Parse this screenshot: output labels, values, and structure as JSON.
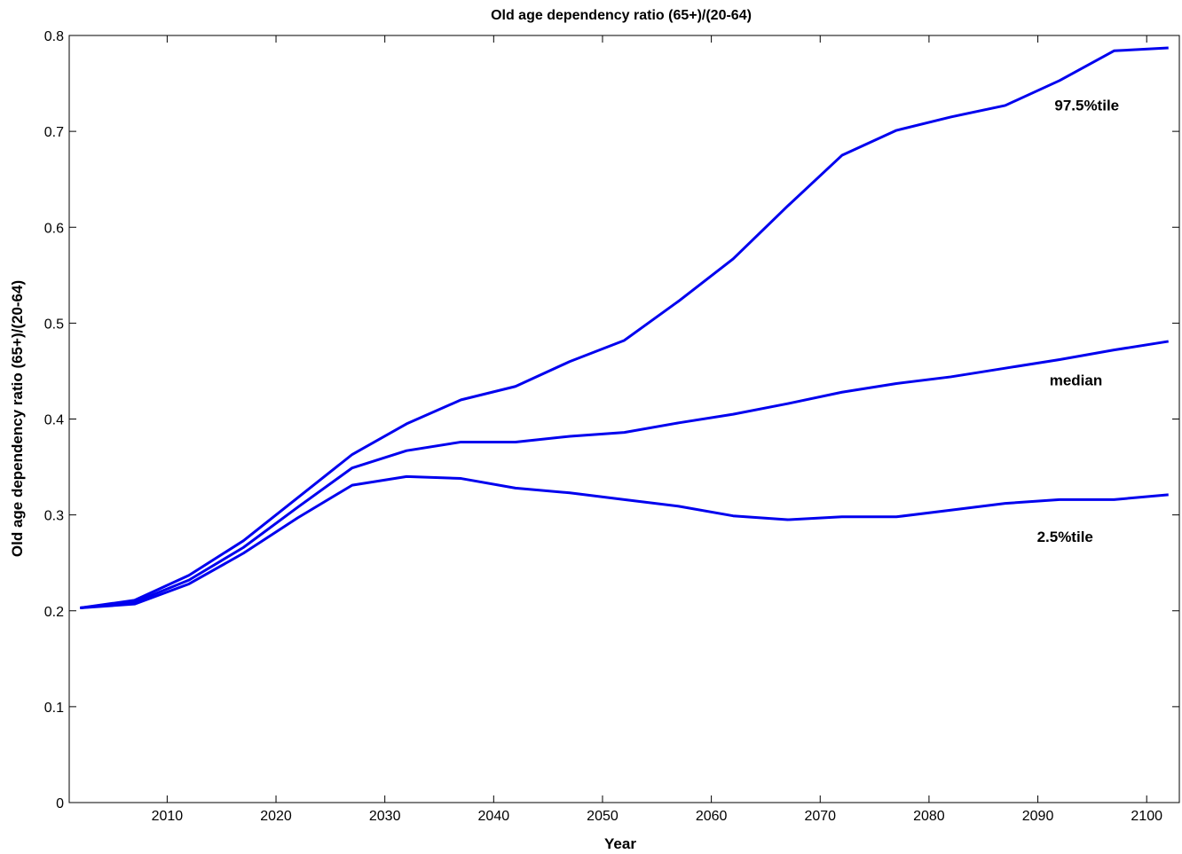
{
  "chart_data": {
    "type": "line",
    "title": "Old age dependency ratio (65+)/(20-64)",
    "xlabel": "Year",
    "ylabel": "Old age dependency ratio (65+)/(20-64)",
    "xlim": [
      2001,
      2103
    ],
    "ylim": [
      0,
      0.8
    ],
    "x_ticks": [
      2010,
      2020,
      2030,
      2040,
      2050,
      2060,
      2070,
      2080,
      2090,
      2100
    ],
    "y_ticks": [
      0,
      0.1,
      0.2,
      0.3,
      0.4,
      0.5,
      0.6,
      0.7,
      0.8
    ],
    "x_tick_labels": [
      "2010",
      "2020",
      "2030",
      "2040",
      "2050",
      "2060",
      "2070",
      "2080",
      "2090",
      "2100"
    ],
    "y_tick_labels": [
      "0",
      "0.1",
      "0.2",
      "0.3",
      "0.4",
      "0.5",
      "0.6",
      "0.7",
      "0.8"
    ],
    "grid": false,
    "line_color": "#0000ee",
    "x": [
      2002,
      2007,
      2012,
      2017,
      2022,
      2027,
      2032,
      2037,
      2042,
      2047,
      2052,
      2057,
      2062,
      2067,
      2072,
      2077,
      2082,
      2087,
      2092,
      2097,
      2102
    ],
    "series": [
      {
        "label": "97.5%tile",
        "values": [
          0.203,
          0.211,
          0.237,
          0.273,
          0.318,
          0.363,
          0.395,
          0.42,
          0.434,
          0.46,
          0.482,
          0.523,
          0.567,
          0.622,
          0.675,
          0.701,
          0.715,
          0.727,
          0.753,
          0.784,
          0.787
        ]
      },
      {
        "label": "median",
        "values": [
          0.203,
          0.209,
          0.232,
          0.266,
          0.308,
          0.349,
          0.367,
          0.376,
          0.376,
          0.382,
          0.386,
          0.396,
          0.405,
          0.416,
          0.428,
          0.437,
          0.444,
          0.453,
          0.462,
          0.472,
          0.481
        ]
      },
      {
        "label": "2.5%tile",
        "values": [
          0.203,
          0.207,
          0.228,
          0.26,
          0.297,
          0.331,
          0.34,
          0.338,
          0.328,
          0.323,
          0.316,
          0.309,
          0.299,
          0.295,
          0.298,
          0.298,
          0.305,
          0.312,
          0.316,
          0.316,
          0.321
        ]
      }
    ],
    "annotations": [
      {
        "text": "97.5%tile",
        "x": 2094.5,
        "y": 0.722
      },
      {
        "text": "median",
        "x": 2093.5,
        "y": 0.435
      },
      {
        "text": "2.5%tile",
        "x": 2092.5,
        "y": 0.272
      }
    ]
  }
}
